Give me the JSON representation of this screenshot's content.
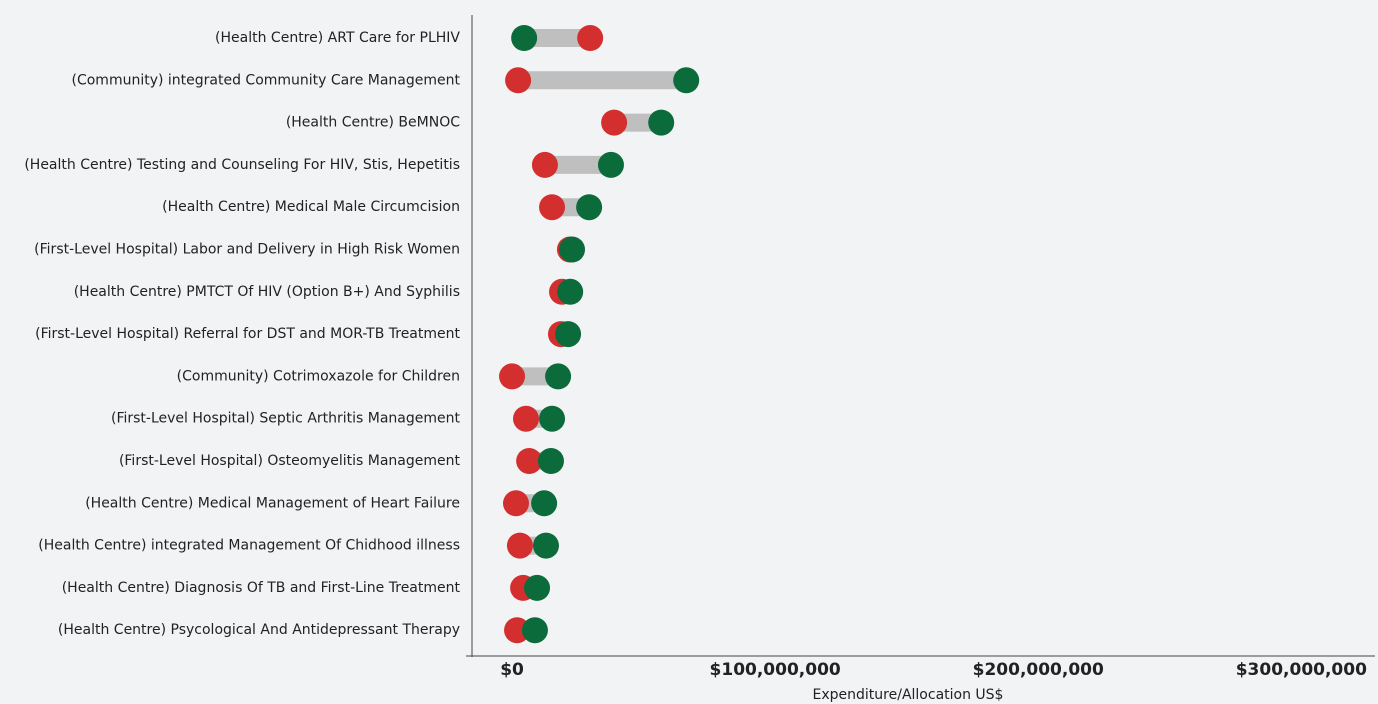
{
  "chart_data": {
    "type": "dumbbell",
    "categories": [
      "(Health Centre) ART Care for PLHIV",
      "(Community) integrated Community Care Management",
      "(Health Centre) BeMNOC",
      "(Health Centre) Testing and Counseling For HIV, Stis, Hepetitis",
      "(Health Centre) Medical Male Circumcision",
      "(First-Level Hospital) Labor and Delivery in High Risk Women",
      "(Health Centre) PMTCT Of HIV (Option B+) And Syphilis",
      "(First-Level Hospital) Referral for DST and MOR-TB Treatment",
      "(Community) Cotrimoxazole for Children",
      "(First-Level Hospital) Septic Arthritis Management",
      "(First-Level Hospital) Osteomyelitis Management",
      "(Health Centre) Medical Management of Heart Failure",
      "(Health Centre) integrated Management Of Chidhood illness",
      "(Health Centre) Diagnosis Of TB and First-Line Treatment",
      "(Health Centre) Psycological And Antidepressant Therapy"
    ],
    "series": [
      {
        "color": "#d32f2f",
        "values": [
          29700000,
          2300000,
          38800000,
          12500000,
          15200000,
          22000000,
          19000000,
          18600000,
          0,
          5300000,
          6500000,
          1500000,
          3000000,
          4200000,
          1900000
        ]
      },
      {
        "color": "#0b6b3a",
        "values": [
          4600000,
          66200000,
          56700000,
          37600000,
          29300000,
          22800000,
          22100000,
          21300000,
          17500000,
          15200000,
          14800000,
          12200000,
          12900000,
          9500000,
          8700000
        ]
      }
    ],
    "xlabel": "Expenditure/Allocation US$",
    "xlim": [
      -17500000,
      328000000
    ],
    "xticks": [
      {
        "value": 0,
        "label": "$0"
      },
      {
        "value": 100000000,
        "label": "$100,000,000"
      },
      {
        "value": 200000000,
        "label": "$200,000,000"
      },
      {
        "value": 300000000,
        "label": "$300,000,000"
      }
    ],
    "bar_color": "#bfbfbf"
  }
}
